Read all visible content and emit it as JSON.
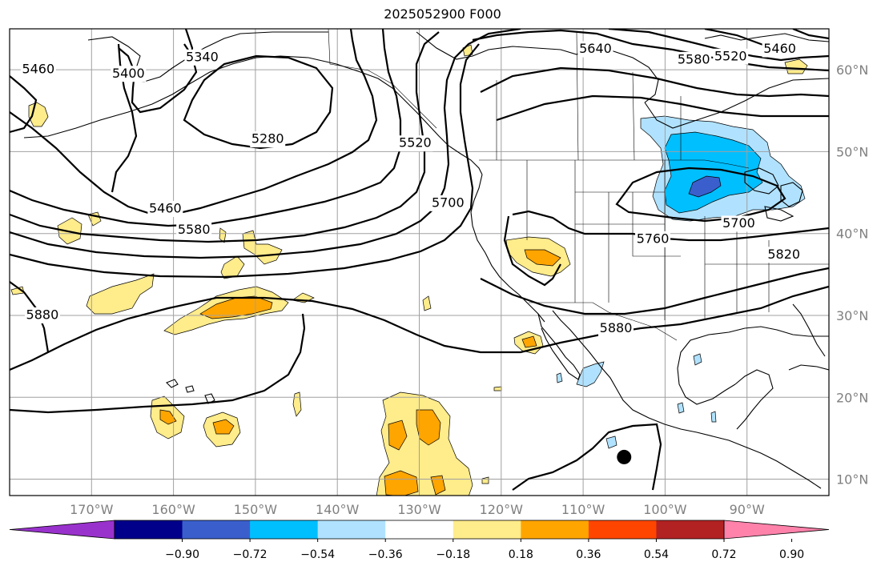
{
  "title": "2025052900 F000",
  "map": {
    "lon_range": [
      -180,
      -80
    ],
    "lat_range": [
      8,
      65
    ],
    "lat_ticks": [
      "10°N",
      "20°N",
      "30°N",
      "40°N",
      "50°N",
      "60°N"
    ],
    "lon_ticks": [
      "170°W",
      "160°W",
      "150°W",
      "140°W",
      "130°W",
      "120°W",
      "110°W",
      "100°W",
      "90°W"
    ],
    "gridlines": true,
    "marker": {
      "lon": -105,
      "lat": 12.7,
      "color": "#000000"
    }
  },
  "contours": {
    "labels": [
      {
        "text": "5460",
        "lon": -176.5,
        "lat": 60
      },
      {
        "text": "5400",
        "lon": -165.5,
        "lat": 59.5
      },
      {
        "text": "5340",
        "lon": -156.5,
        "lat": 61.5
      },
      {
        "text": "5280",
        "lon": -148.5,
        "lat": 51.5
      },
      {
        "text": "5460",
        "lon": -161,
        "lat": 43
      },
      {
        "text": "5580",
        "lon": -157.5,
        "lat": 40.4
      },
      {
        "text": "5520",
        "lon": -130.5,
        "lat": 51
      },
      {
        "text": "5700",
        "lon": -126.5,
        "lat": 43.7
      },
      {
        "text": "5640",
        "lon": -108.5,
        "lat": 62.5
      },
      {
        "text": "5580",
        "lon": -96.5,
        "lat": 61.2
      },
      {
        "text": "5520",
        "lon": -92,
        "lat": 61.6
      },
      {
        "text": "5460",
        "lon": -86,
        "lat": 62.5
      },
      {
        "text": "5760",
        "lon": -101.5,
        "lat": 39.3
      },
      {
        "text": "5700",
        "lon": -91,
        "lat": 41.2
      },
      {
        "text": "5820",
        "lon": -85.5,
        "lat": 37.4
      },
      {
        "text": "5880",
        "lon": -106,
        "lat": 28.4
      },
      {
        "text": "5880",
        "lon": -176,
        "lat": 30
      }
    ]
  },
  "colorbar": {
    "colors": [
      "#9932cc",
      "#00008b",
      "#3a5fcd",
      "#00bfff",
      "#b0e2ff",
      "#ffffff",
      "#ffec8b",
      "#ffa500",
      "#ff4500",
      "#b22222",
      "#ff82ab"
    ],
    "ticks": [
      "−0.90",
      "−0.72",
      "−0.54",
      "−0.36",
      "−0.18",
      "0.18",
      "0.36",
      "0.54",
      "0.72",
      "0.90"
    ]
  }
}
